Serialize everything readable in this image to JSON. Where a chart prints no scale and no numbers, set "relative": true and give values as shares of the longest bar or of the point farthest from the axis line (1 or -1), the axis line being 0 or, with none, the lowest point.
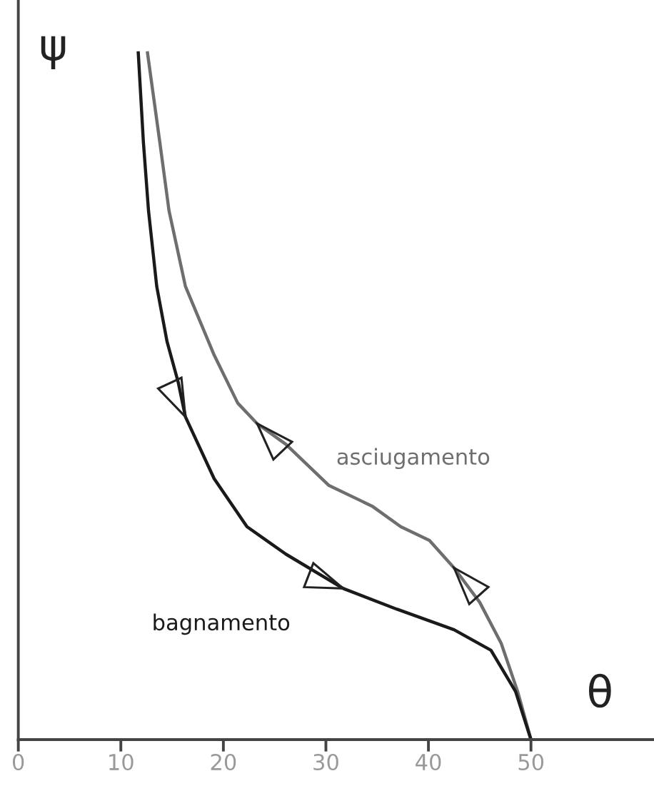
{
  "chart_data": {
    "type": "line",
    "relative": true,
    "xlabel": "θ",
    "ylabel": "ψ",
    "xlim": [
      0,
      62
    ],
    "xticks": [
      0,
      10,
      20,
      30,
      40,
      50
    ],
    "tick_labels": "x",
    "grid": false,
    "legend": false,
    "marker": "none",
    "line_style": "solid",
    "series": [
      {
        "name": "asciugamento",
        "color": "#6e6e6e",
        "x": [
          12.6,
          13.8,
          14.7,
          16.3,
          19.1,
          21.4,
          23.3,
          26.1,
          30.3,
          34.5,
          37.3,
          40.1,
          42.5,
          45.0,
          47.1,
          48.7,
          50
        ],
        "values": [
          1.0,
          0.87,
          0.77,
          0.66,
          0.56,
          0.49,
          0.46,
          0.43,
          0.37,
          0.34,
          0.31,
          0.29,
          0.25,
          0.2,
          0.14,
          0.07,
          0
        ]
      },
      {
        "name": "bagnamento",
        "color": "#1a1a1a",
        "x": [
          11.7,
          12.2,
          12.7,
          13.5,
          14.5,
          15.6,
          16.3,
          19.1,
          22.3,
          26.1,
          31.7,
          36.9,
          42.5,
          46.1,
          48.5,
          50
        ],
        "values": [
          1.0,
          0.87,
          0.77,
          0.66,
          0.58,
          0.52,
          0.47,
          0.38,
          0.31,
          0.27,
          0.22,
          0.19,
          0.16,
          0.13,
          0.07,
          0
        ]
      }
    ]
  }
}
